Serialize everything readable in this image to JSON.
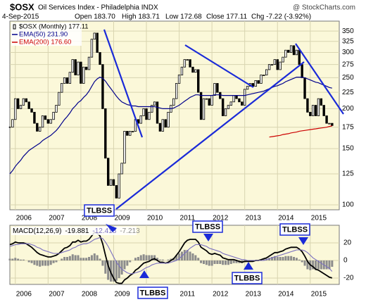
{
  "header": {
    "title": "$OSX",
    "subtitle": "Oil Services Index - Philadelphia INDX",
    "source": "@ StockCharts.com",
    "date": "4-Sep-2015",
    "quote": [
      "Open 183.70",
      "High 183.71",
      "Low 172.68",
      "Close 177.11",
      "Chg -7.22 (-3.92%)"
    ]
  },
  "annotations": [
    "TLBSS",
    "TLBSS",
    "TLBSS",
    "TLBBS",
    "TLBBS"
  ],
  "chart_data": [
    {
      "type": "candlestick",
      "log_scale": true,
      "grid": true,
      "categories": [
        null,
        null,
        "2006",
        null,
        null,
        null,
        null,
        null,
        null,
        null,
        null,
        null,
        null,
        null,
        "2007",
        null,
        null,
        null,
        null,
        null,
        null,
        null,
        null,
        null,
        null,
        null,
        "2008",
        null,
        null,
        null,
        null,
        null,
        null,
        null,
        null,
        null,
        null,
        null,
        "2009",
        null,
        null,
        null,
        null,
        null,
        null,
        null,
        null,
        null,
        null,
        null,
        "2010",
        null,
        null,
        null,
        null,
        null,
        null,
        null,
        null,
        null,
        null,
        null,
        "2011",
        null,
        null,
        null,
        null,
        null,
        null,
        null,
        null,
        null,
        null,
        null,
        "2012",
        null,
        null,
        null,
        null,
        null,
        null,
        null,
        null,
        null,
        null,
        null,
        "2013",
        null,
        null,
        null,
        null,
        null,
        null,
        null,
        null,
        null,
        null,
        null,
        "2014",
        null,
        null,
        null,
        null,
        null,
        null,
        null,
        null,
        null,
        null,
        null,
        "2015",
        null,
        null,
        null,
        null,
        null,
        null,
        null,
        null
      ],
      "series": [
        {
          "name": "$OSX (Monthly) 177.11",
          "color": "#000000",
          "values": [
            175,
            185,
            215,
            200,
            205,
            215,
            210,
            200,
            195,
            180,
            170,
            175,
            190,
            185,
            180,
            185,
            195,
            205,
            225,
            240,
            250,
            240,
            260,
            285,
            255,
            280,
            240,
            270,
            265,
            290,
            330,
            345,
            300,
            275,
            200,
            140,
            115,
            120,
            115,
            105,
            125,
            135,
            170,
            165,
            170,
            170,
            185,
            180,
            190,
            200,
            185,
            195,
            205,
            210,
            180,
            170,
            185,
            175,
            195,
            205,
            215,
            240,
            255,
            270,
            285,
            285,
            270,
            260,
            265,
            225,
            185,
            215,
            215,
            205,
            220,
            240,
            225,
            215,
            190,
            200,
            205,
            210,
            220,
            215,
            210,
            205,
            230,
            235,
            240,
            235,
            245,
            240,
            255,
            255,
            265,
            275,
            275,
            285,
            265,
            280,
            290,
            305,
            300,
            315,
            295,
            305,
            275,
            250,
            215,
            195,
            190,
            205,
            190,
            215,
            205,
            190,
            180,
            180,
            177.11
          ]
        },
        {
          "name": "EMA(50) 231.90",
          "color": "#00008b",
          "values": [
            125,
            128,
            132,
            135,
            138,
            142,
            145,
            148,
            150,
            152,
            154,
            156,
            159,
            161,
            163,
            165,
            168,
            171,
            175,
            180,
            185,
            189,
            194,
            200,
            204,
            209,
            212,
            217,
            221,
            227,
            235,
            243,
            248,
            251,
            249,
            244,
            237,
            231,
            225,
            219,
            214,
            210,
            208,
            206,
            205,
            204,
            204,
            203,
            203,
            203,
            203,
            203,
            203,
            203,
            202,
            201,
            200,
            200,
            200,
            200,
            201,
            203,
            205,
            208,
            211,
            214,
            217,
            219,
            221,
            221,
            220,
            220,
            220,
            220,
            220,
            221,
            221,
            221,
            220,
            220,
            220,
            220,
            220,
            220,
            220,
            220,
            220,
            221,
            222,
            223,
            224,
            225,
            226,
            227,
            229,
            231,
            233,
            235,
            236,
            238,
            240,
            243,
            245,
            247,
            249,
            251,
            251,
            251,
            250,
            248,
            246,
            244,
            242,
            241,
            239,
            237,
            235,
            233,
            231.9
          ]
        },
        {
          "name": "EMA(200) 176.60",
          "color": "#cc0000",
          "values": [
            null,
            null,
            null,
            null,
            null,
            null,
            null,
            null,
            null,
            null,
            null,
            null,
            null,
            null,
            null,
            null,
            null,
            null,
            null,
            null,
            null,
            null,
            null,
            null,
            null,
            null,
            null,
            null,
            null,
            null,
            null,
            null,
            null,
            null,
            null,
            null,
            null,
            null,
            null,
            null,
            null,
            null,
            null,
            null,
            null,
            null,
            null,
            null,
            null,
            null,
            null,
            null,
            null,
            null,
            null,
            null,
            null,
            null,
            null,
            null,
            null,
            null,
            null,
            null,
            null,
            null,
            null,
            null,
            null,
            null,
            null,
            null,
            null,
            null,
            null,
            null,
            null,
            null,
            null,
            null,
            null,
            null,
            null,
            null,
            null,
            null,
            null,
            null,
            null,
            null,
            null,
            null,
            null,
            null,
            null,
            163,
            163.5,
            164,
            164.5,
            165,
            166,
            166.5,
            167,
            168,
            168.5,
            169,
            170,
            170.5,
            171,
            171.5,
            172,
            172.5,
            173,
            173.5,
            174,
            174.5,
            175,
            176,
            176.6
          ]
        }
      ],
      "ylim": [
        96.5,
        376
      ],
      "yticks": [
        100,
        125,
        150,
        175,
        200,
        225,
        250,
        275,
        300,
        325,
        350
      ]
    },
    {
      "type": "macd",
      "label": "MACD(12,26,9)",
      "grid": true,
      "series": [
        {
          "kind": "histogram",
          "color": "#8c8c8c",
          "values": [
            2,
            2,
            3,
            2,
            1,
            1,
            0,
            -2,
            -3,
            -5,
            -6,
            -7,
            -6,
            -6,
            -6,
            -5,
            -3,
            -2,
            0,
            2,
            4,
            4,
            5,
            7,
            6,
            6,
            3,
            3,
            3,
            4,
            6,
            8,
            6,
            2,
            -6,
            -15,
            -22,
            -24,
            -24,
            -23,
            -20,
            -16,
            -10,
            -6,
            -2,
            0,
            3,
            4,
            6,
            7,
            6,
            6,
            6,
            6,
            3,
            1,
            1,
            0,
            1,
            2,
            3,
            6,
            8,
            10,
            12,
            12,
            10,
            8,
            6,
            3,
            -3,
            -4,
            -5,
            -6,
            -6,
            -4,
            -4,
            -4,
            -5,
            -5,
            -5,
            -4,
            -3,
            -3,
            -3,
            -3,
            -2,
            -1,
            -1,
            -1,
            0,
            0,
            1,
            2,
            2,
            3,
            4,
            5,
            4,
            4,
            4,
            5,
            5,
            5,
            4,
            3,
            1,
            -2,
            -6,
            -10,
            -11,
            -10,
            -11,
            -10,
            -10,
            -10,
            -10,
            -10,
            -7.213
          ]
        },
        {
          "kind": "line",
          "color": "#000000",
          "values": [
            18,
            19,
            21,
            20,
            20,
            20,
            19,
            17,
            15,
            12,
            9,
            7,
            6,
            5,
            4,
            4,
            5,
            6,
            8,
            11,
            14,
            15,
            17,
            21,
            21,
            23,
            21,
            22,
            22,
            24,
            28,
            32,
            31,
            28,
            19,
            6,
            -6,
            -14,
            -20,
            -25,
            -26,
            -26,
            -22,
            -20,
            -17,
            -15,
            -11,
            -9,
            -6,
            -3,
            -2,
            -1,
            1,
            2,
            0,
            -2,
            -2,
            -3,
            -2,
            0,
            2,
            6,
            10,
            15,
            20,
            23,
            24,
            24,
            24,
            21,
            15,
            13,
            11,
            8,
            7,
            8,
            7,
            6,
            3,
            2,
            1,
            1,
            1,
            0,
            -1,
            -2,
            -1,
            -1,
            -1,
            -1,
            0,
            0,
            1,
            2,
            3,
            5,
            7,
            9,
            9,
            10,
            11,
            13,
            14,
            15,
            15,
            15,
            13,
            10,
            5,
            -1,
            -5,
            -7,
            -10,
            -11,
            -13,
            -15,
            -17,
            -19,
            -19.881
          ]
        },
        {
          "kind": "line",
          "color": "#7a6fc0",
          "values": [
            16,
            17,
            18,
            18,
            19,
            19,
            19,
            19,
            18,
            17,
            15,
            14,
            12,
            11,
            10,
            9,
            8,
            8,
            8,
            9,
            10,
            11,
            12,
            14,
            15,
            17,
            18,
            19,
            19,
            20,
            22,
            24,
            25,
            26,
            25,
            21,
            16,
            10,
            4,
            -2,
            -6,
            -10,
            -12,
            -14,
            -15,
            -15,
            -14,
            -13,
            -12,
            -10,
            -8,
            -7,
            -5,
            -4,
            -3,
            -3,
            -3,
            -3,
            -3,
            -2,
            -1,
            0,
            2,
            5,
            8,
            11,
            14,
            16,
            18,
            18,
            18,
            17,
            16,
            14,
            13,
            12,
            11,
            10,
            8,
            7,
            6,
            5,
            4,
            3,
            2,
            1,
            1,
            0,
            0,
            0,
            0,
            0,
            0,
            0,
            1,
            2,
            3,
            4,
            5,
            6,
            7,
            8,
            9,
            10,
            11,
            12,
            12,
            12,
            11,
            9,
            6,
            3,
            1,
            -1,
            -3,
            -5,
            -7,
            -9,
            -12.418
          ]
        }
      ],
      "ylim": [
        -27.2,
        40
      ],
      "yticks": [
        -20,
        0,
        20
      ]
    }
  ]
}
